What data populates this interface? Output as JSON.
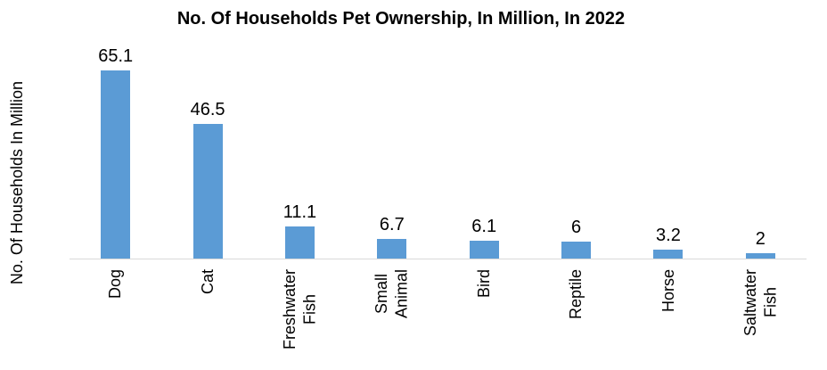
{
  "chart_data": {
    "type": "bar",
    "title": "No. Of Households Pet Ownership, In Million, In 2022",
    "xlabel": "",
    "ylabel": "No. Of Households In Million",
    "categories": [
      "Dog",
      "Cat",
      "Freshwater Fish",
      "Small Animal",
      "Bird",
      "Reptile",
      "Horse",
      "Saltwater Fish"
    ],
    "category_display": [
      "Dog",
      "Cat",
      "Freshwater\nFish",
      "Small\nAnimal",
      "Bird",
      "Reptile",
      "Horse",
      "Saltwater\nFish"
    ],
    "values": [
      65.1,
      46.5,
      11.1,
      6.7,
      6.1,
      6,
      3.2,
      2
    ],
    "value_labels": [
      "65.1",
      "46.5",
      "11.1",
      "6.7",
      "6.1",
      "6",
      "3.2",
      "2"
    ],
    "ylim": [
      0,
      70
    ],
    "grid": false,
    "legend": false,
    "y_axis_ticks_visible": false,
    "bar_color": "#5B9BD5",
    "axis_line_color": "#D9D9D9",
    "text_color": "#000000"
  }
}
